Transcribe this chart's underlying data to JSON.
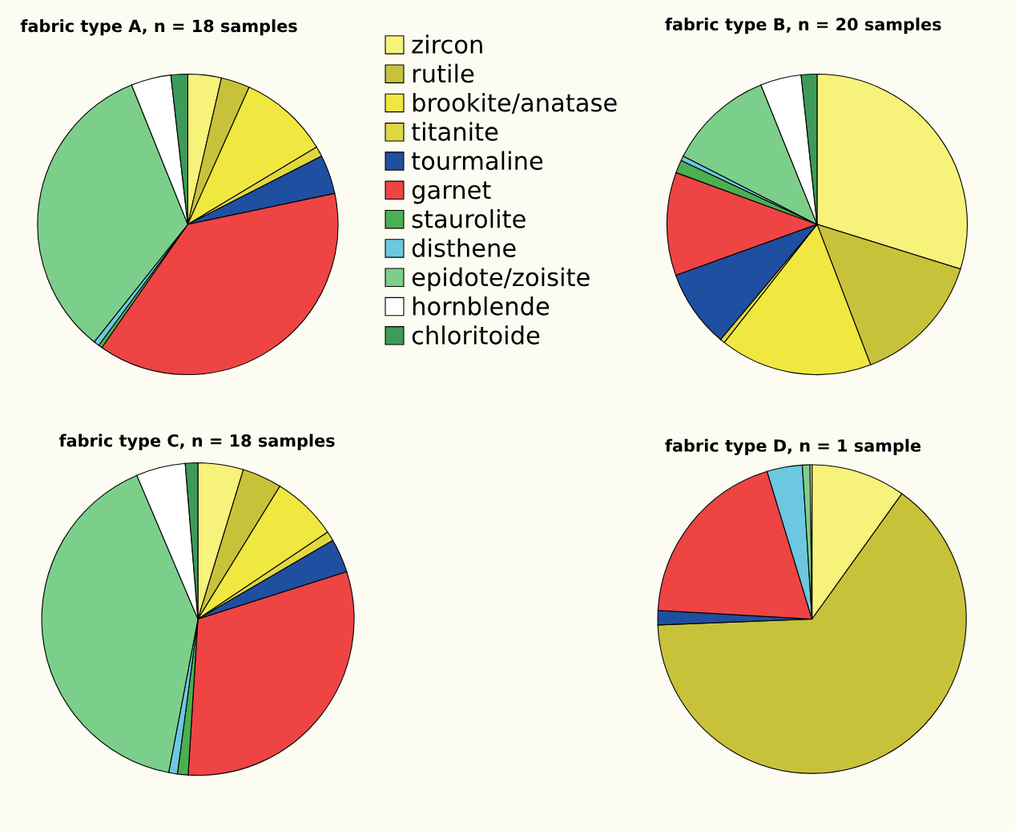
{
  "chart_data": [
    {
      "type": "pie",
      "title": "fabric type A, n = 18 samples",
      "legend": "right",
      "categories": [
        "zircon",
        "rutile",
        "brookite/anatase",
        "titanite",
        "tourmaline",
        "garnet",
        "staurolite",
        "disthene",
        "epidote/zoisite",
        "hornblende",
        "chloritoide"
      ],
      "values": [
        3.6,
        3.1,
        9.7,
        1.1,
        4.2,
        38.0,
        0.4,
        0.6,
        33.2,
        4.3,
        1.8
      ],
      "colors": [
        "#f7f27a",
        "#c8c23a",
        "#f0e840",
        "#e0d840",
        "#1f4fa0",
        "#ee4444",
        "#4caf50",
        "#6cc8e0",
        "#7ccf8a",
        "#ffffff",
        "#3d9a5a"
      ]
    },
    {
      "type": "pie",
      "title": "fabric type B, n = 20 samples",
      "categories": [
        null,
        null,
        null,
        null,
        null,
        null,
        null,
        null,
        null,
        null,
        null
      ],
      "values": [
        29.8,
        14.4,
        16.4,
        0.5,
        8.4,
        11.1,
        1.4,
        0.5,
        11.4,
        4.4,
        1.7
      ],
      "colors": [
        "#f7f27a",
        "#c8c23a",
        "#f0e840",
        "#e0d840",
        "#1f4fa0",
        "#ee4444",
        "#4caf50",
        "#6cc8e0",
        "#7ccf8a",
        "#ffffff",
        "#3d9a5a"
      ]
    },
    {
      "type": "pie",
      "title": "fabric type C, n = 18 samples",
      "categories": [
        null,
        null,
        null,
        null,
        null,
        null,
        null,
        null,
        null,
        null,
        null
      ],
      "values": [
        4.7,
        4.1,
        6.8,
        1.0,
        3.5,
        30.9,
        1.1,
        0.9,
        40.6,
        5.1,
        1.3
      ],
      "colors": [
        "#f7f27a",
        "#c8c23a",
        "#f0e840",
        "#e0d840",
        "#1f4fa0",
        "#ee4444",
        "#4caf50",
        "#6cc8e0",
        "#7ccf8a",
        "#ffffff",
        "#3d9a5a"
      ]
    },
    {
      "type": "pie",
      "title": "fabric type D, n = 1 sample",
      "categories": [
        null,
        null,
        null,
        null,
        null,
        null,
        null,
        null,
        null,
        null,
        null
      ],
      "values": [
        9.9,
        64.5,
        0,
        0,
        1.5,
        19.4,
        0,
        3.7,
        0.8,
        0.2,
        0
      ],
      "colors": [
        "#f7f27a",
        "#c8c23a",
        "#f0e840",
        "#e0d840",
        "#1f4fa0",
        "#ee4444",
        "#4caf50",
        "#6cc8e0",
        "#7ccf8a",
        "#ffffff",
        "#3d9a5a"
      ]
    }
  ]
}
